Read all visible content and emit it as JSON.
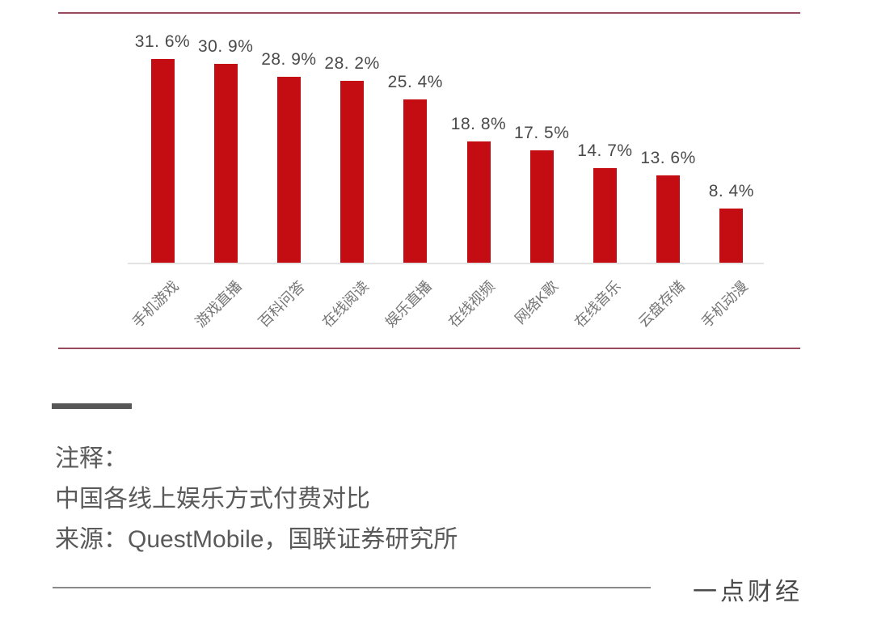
{
  "chart_data": {
    "type": "bar",
    "categories": [
      "手机游戏",
      "游戏直播",
      "百科问答",
      "在线阅读",
      "娱乐直播",
      "在线视频",
      "网络K歌",
      "在线音乐",
      "云盘存储",
      "手机动漫"
    ],
    "values": [
      31.6,
      30.9,
      28.9,
      28.2,
      25.4,
      18.8,
      17.5,
      14.7,
      13.6,
      8.4
    ],
    "value_labels": [
      "31. 6%",
      "30. 9%",
      "28. 9%",
      "28. 2%",
      "25. 4%",
      "18. 8%",
      "17. 5%",
      "14. 7%",
      "13. 6%",
      "8. 4%"
    ],
    "title": "中国各线上娱乐方式付费对比",
    "xlabel": "",
    "ylabel": "",
    "ylim": [
      0,
      35
    ],
    "grid": false,
    "legend": false,
    "bar_color": "#c30d12",
    "axis_color": "#e3e3e3"
  },
  "colors": {
    "divider_red": "#9a4a5e",
    "note_accent_gray": "#575757",
    "text_gray": "#5a5a5a"
  },
  "notes": {
    "line1": "注释：",
    "line2": "中国各线上娱乐方式付费对比",
    "line3": "来源：QuestMobile，国联证券研究所"
  },
  "footer": {
    "brand": "一点财经"
  }
}
